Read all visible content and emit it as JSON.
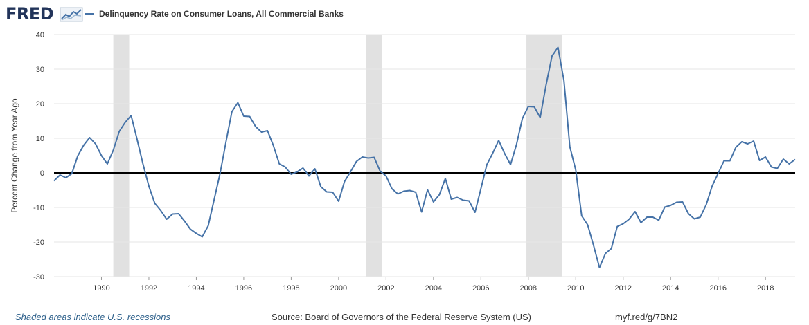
{
  "header": {
    "logo_text": "FRED",
    "logo_icon": "fred-line-chart-icon",
    "legend_label": "Delinquency Rate on Consumer Loans, All Commercial Banks"
  },
  "footer": {
    "recession_note": "Shaded areas indicate U.S. recessions",
    "source": "Source: Board of Governors of the Federal Reserve System (US)",
    "link": "myf.red/g/7BN2"
  },
  "colors": {
    "line": "#4572a7",
    "recession": "#e1e1e1",
    "grid": "#e6e6e6",
    "zero_line": "#000000",
    "brand": "#22345a"
  },
  "chart_data": {
    "type": "line",
    "title": "",
    "xlabel": "",
    "ylabel": "Percent Change from Year Ago",
    "xlim": [
      1988.0,
      2019.25
    ],
    "ylim": [
      -30,
      40
    ],
    "yticks": [
      40,
      30,
      20,
      10,
      0,
      -10,
      -20,
      -30
    ],
    "xticks": [
      1990,
      1992,
      1994,
      1996,
      1998,
      2000,
      2002,
      2004,
      2006,
      2008,
      2010,
      2012,
      2014,
      2016,
      2018
    ],
    "grid": true,
    "legend_position": "top-left",
    "zero_line": true,
    "recessions": [
      [
        1990.5,
        1991.17
      ],
      [
        2001.17,
        2001.83
      ],
      [
        2007.92,
        2009.42
      ]
    ],
    "series": [
      {
        "name": "Delinquency Rate on Consumer Loans, All Commercial Banks",
        "x": [
          1988.0,
          1988.25,
          1988.5,
          1988.75,
          1989.0,
          1989.25,
          1989.5,
          1989.75,
          1990.0,
          1990.25,
          1990.5,
          1990.75,
          1991.0,
          1991.25,
          1991.5,
          1991.75,
          1992.0,
          1992.25,
          1992.5,
          1992.75,
          1993.0,
          1993.25,
          1993.5,
          1993.75,
          1994.0,
          1994.25,
          1994.5,
          1994.75,
          1995.0,
          1995.25,
          1995.5,
          1995.75,
          1996.0,
          1996.25,
          1996.5,
          1996.75,
          1997.0,
          1997.25,
          1997.5,
          1997.75,
          1998.0,
          1998.25,
          1998.5,
          1998.75,
          1999.0,
          1999.25,
          1999.5,
          1999.75,
          2000.0,
          2000.25,
          2000.5,
          2000.75,
          2001.0,
          2001.25,
          2001.5,
          2001.75,
          2002.0,
          2002.25,
          2002.5,
          2002.75,
          2003.0,
          2003.25,
          2003.5,
          2003.75,
          2004.0,
          2004.25,
          2004.5,
          2004.75,
          2005.0,
          2005.25,
          2005.5,
          2005.75,
          2006.0,
          2006.25,
          2006.5,
          2006.75,
          2007.0,
          2007.25,
          2007.5,
          2007.75,
          2008.0,
          2008.25,
          2008.5,
          2008.75,
          2009.0,
          2009.25,
          2009.5,
          2009.75,
          2010.0,
          2010.25,
          2010.5,
          2010.75,
          2011.0,
          2011.25,
          2011.5,
          2011.75,
          2012.0,
          2012.25,
          2012.5,
          2012.75,
          2013.0,
          2013.25,
          2013.5,
          2013.75,
          2014.0,
          2014.25,
          2014.5,
          2014.75,
          2015.0,
          2015.25,
          2015.5,
          2015.75,
          2016.0,
          2016.25,
          2016.5,
          2016.75,
          2017.0,
          2017.25,
          2017.5,
          2017.75,
          2018.0,
          2018.25,
          2018.5,
          2018.75,
          2019.0,
          2019.25
        ],
        "y": [
          -2.3,
          -0.6,
          -1.4,
          -0.2,
          4.9,
          8.0,
          10.2,
          8.4,
          5.0,
          2.6,
          6.6,
          12.0,
          14.6,
          16.6,
          9.8,
          2.6,
          -3.9,
          -8.8,
          -10.9,
          -13.4,
          -11.9,
          -11.8,
          -13.9,
          -16.3,
          -17.5,
          -18.5,
          -15.3,
          -7.8,
          -0.2,
          8.9,
          17.7,
          20.3,
          16.4,
          16.3,
          13.4,
          11.8,
          12.2,
          7.9,
          2.6,
          1.7,
          -0.4,
          0.3,
          1.4,
          -0.9,
          1.2,
          -4.0,
          -5.5,
          -5.6,
          -8.2,
          -2.5,
          0.3,
          3.3,
          4.6,
          4.3,
          4.5,
          0.5,
          -0.9,
          -4.6,
          -6.1,
          -5.3,
          -5.1,
          -5.6,
          -11.3,
          -4.9,
          -8.4,
          -6.3,
          -1.6,
          -7.6,
          -7.1,
          -7.9,
          -8.1,
          -11.4,
          -4.6,
          2.4,
          5.7,
          9.4,
          5.6,
          2.4,
          8.2,
          15.7,
          19.2,
          19.1,
          16.0,
          25.5,
          33.8,
          36.3,
          26.7,
          7.6,
          0.8,
          -12.4,
          -15.0,
          -21.0,
          -27.4,
          -23.3,
          -21.9,
          -15.5,
          -14.7,
          -13.4,
          -11.2,
          -14.4,
          -12.8,
          -12.8,
          -13.7,
          -9.9,
          -9.4,
          -8.5,
          -8.4,
          -11.8,
          -13.3,
          -12.8,
          -9.2,
          -3.8,
          -0.2,
          3.5,
          3.5,
          7.4,
          9.0,
          8.4,
          9.2,
          3.6,
          4.6,
          1.7,
          1.3,
          4.0,
          2.6,
          3.9
        ]
      }
    ]
  }
}
